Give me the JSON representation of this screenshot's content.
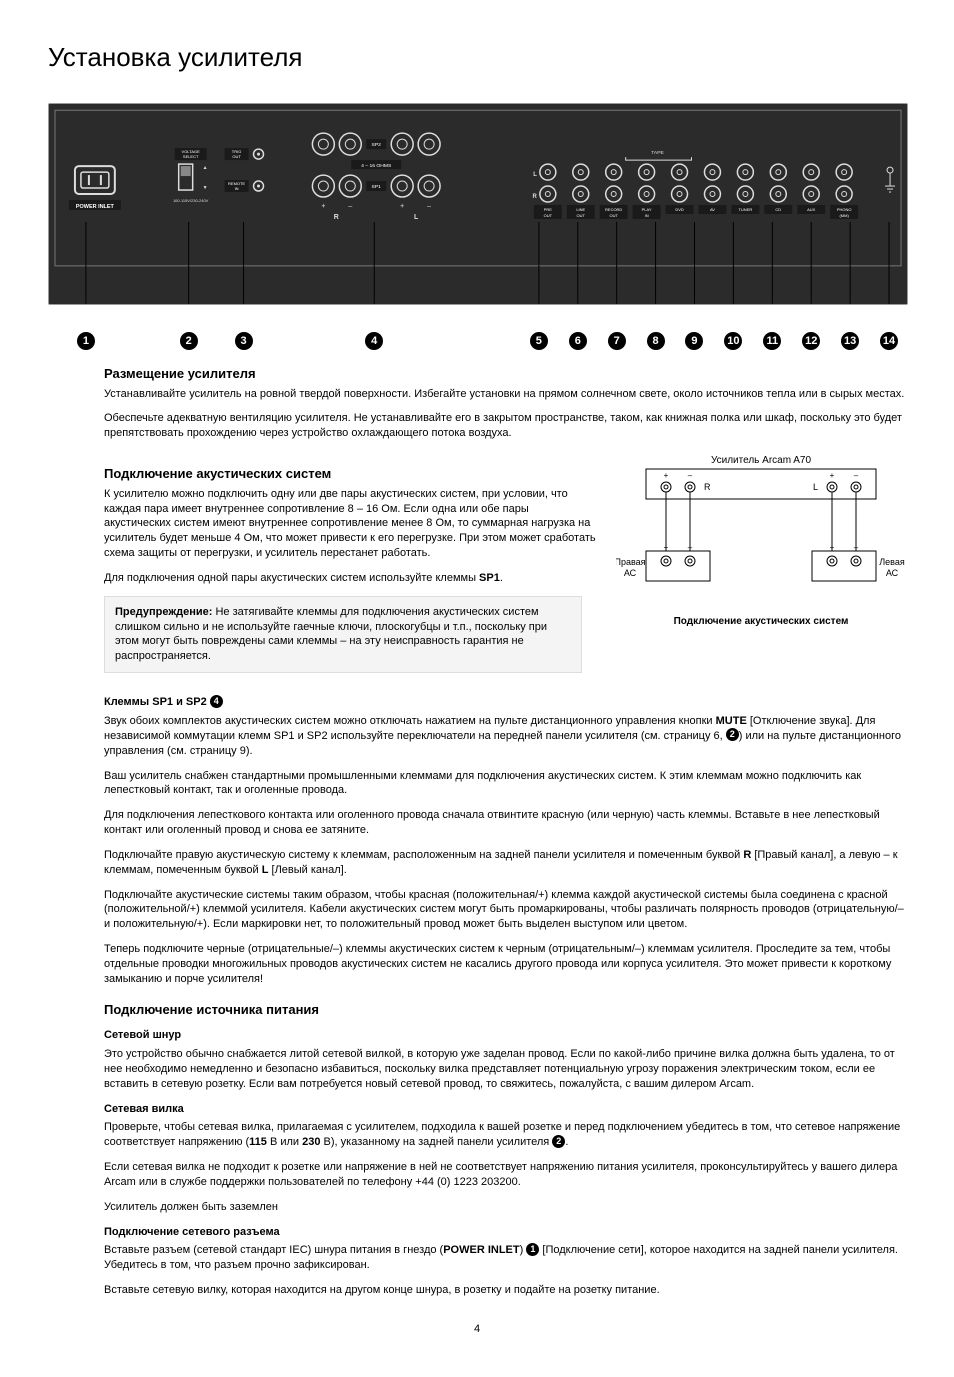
{
  "page": {
    "title": "Установка усилителя",
    "number": "4"
  },
  "diagram": {
    "bg": "#2b2b2b",
    "stroke": "#dddddd",
    "labels": {
      "power_inlet": "POWER INLET",
      "voltage_select": "VOLTAGE\nSELECT",
      "voltage_range": "100-115V/230-240V",
      "voltage_up_down": "230",
      "trig_out": "TRIG\nOUT",
      "remote_in": "REMOTE\nIN",
      "sp1": "SP1",
      "sp2": "SP2",
      "ohms": "4 – 16 OHMS",
      "plus": "+",
      "minus": "–",
      "R": "R",
      "L": "L",
      "tape": "TAPE",
      "pre_out": "PRE\nOUT",
      "line_out": "LINE\nOUT",
      "record_out": "RECORD\nOUT",
      "play_in": "PLAY\nIN",
      "dvd": "DVD",
      "av": "AV",
      "tuner": "TUNER",
      "cd": "CD",
      "aux": "AUX",
      "phono_mm": "PHONO\n(MM)",
      "ground": ""
    },
    "callouts_x": [
      37,
      140,
      195,
      326,
      491,
      530,
      569,
      608,
      647,
      686,
      725,
      764,
      803,
      842
    ],
    "callouts_label": [
      "1",
      "2",
      "3",
      "4",
      "5",
      "6",
      "7",
      "8",
      "9",
      "10",
      "11",
      "12",
      "13",
      "14"
    ]
  },
  "speaker_diagram": {
    "title_top": "Усилитель Arcam A70",
    "r_label": "R",
    "l_label": "L",
    "plus": "+",
    "minus": "–",
    "left_amp": "Правая\nАС",
    "right_amp": "Левая\nАС",
    "caption": "Подключение акустических систем"
  },
  "sections": {
    "placement": {
      "heading": "Размещение усилителя",
      "p1": "Устанавливайте усилитель на ровной твердой поверхности. Избегайте установки на прямом солнечном свете, около источников тепла или в сырых местах.",
      "p2": "Обеспечьте адекватную вентиляцию усилителя. Не устанавливайте его в закрытом пространстве, таком, как книжная полка или шкаф, поскольку это будет препятствовать прохождению через устройство охлаждающего потока воздуха."
    },
    "speakers": {
      "heading": "Подключение акустических систем",
      "p1": "К усилителю можно подключить одну или две пары акустических систем, при условии, что каждая пара  имеет внутреннее сопротивление 8 – 16 Ом. Если одна или обе пары акустических систем имеют внутреннее сопротивление менее 8 Ом, то суммарная нагрузка на усилитель будет меньше 4 Ом, что может привести к его перегрузке. При этом может сработать схема защиты от перегрузки, и усилитель перестанет работать.",
      "p2_pre": "Для подключения одной пары акустических систем используйте клеммы ",
      "p2_bold": "SP1",
      "p2_post": ".",
      "warn_bold": "Предупреждение: ",
      "warn_text": "Не затягивайте клеммы для подключения акустических систем слишком сильно и не используйте гаечные ключи, плоскогубцы и т.п., поскольку при этом могут быть повреждены сами клеммы – на эту неисправность гарантия не распространяется.",
      "sub_bold": "Клеммы SP1 и SP2 ",
      "p3a": "Звук обоих комплектов акустических систем можно отключать нажатием на пульте дистанционного управления кнопки ",
      "p3a_bold": "MUTE",
      "p3b": " [Отключение звука]. Для независимой коммутации клемм SP1 и SP2 используйте переключатели на передней панели усилителя (см. страницу 6, ",
      "p3c": ") или на пульте дистанционного управления (см. страницу 9).",
      "p4": "Ваш усилитель снабжен стандартными промышленными клеммами для подключения акустических систем. К этим клеммам можно подключить как лепестковый контакт, так и оголенные провода.",
      "p5": "Для подключения лепесткового контакта или оголенного провода сначала отвинтите красную (или черную) часть клеммы. Вставьте в нее лепестковый контакт или оголенный провод и снова ее затяните.",
      "p6a": "Подключайте правую акустическую систему к клеммам, расположенным на задней панели усилителя и помеченным буквой ",
      "p6a_bold": "R",
      "p6b": " [Правый канал], а левую – к клеммам, помеченным буквой ",
      "p6b_bold": "L",
      "p6c": " [Левый канал].",
      "p7": "Подключайте акустические системы таким образом, чтобы красная (положительная/+) клемма каждой акустической системы была соединена с красной (положительной/+) клеммой усилителя. Кабели акустических систем могут быть промаркированы, чтобы различать полярность проводов (отрицательную/– и положительную/+). Если маркировки нет, то положительный провод может быть выделен выступом или цветом.",
      "p8": "Теперь подключите черные (отрицательные/–) клеммы акустических систем к черным (отрицательным/–) клеммам усилителя. Проследите за тем, чтобы отдельные проводки многожильных проводов акустических систем не касались другого провода или корпуса усилителя. Это может привести к короткому замыканию и порче усилителя!"
    },
    "power": {
      "heading": "Подключение источника питания",
      "cord_h": "Сетевой шнур",
      "cord_p": "Это устройство обычно снабжается литой сетевой вилкой, в которую уже заделан провод. Если по какой-либо причине вилка должна быть удалена, то от нее необходимо немедленно и безопасно избавиться, поскольку вилка представляет потенциальную угрозу поражения электрическим током, если ее вставить в сетевую розетку. Если вам потребуется новый сетевой провод, то свяжитесь, пожалуйста, с вашим дилером Arcam.",
      "plug_h": "Сетевая вилка",
      "plug_p1a": "Проверьте, чтобы сетевая вилка, прилагаемая с усилителем, подходила к вашей розетке и перед подключением убедитесь в том, что сетевое напряжение соответствует напряжению (",
      "plug_p1_b1": "115",
      "plug_p1_mid": " В или ",
      "plug_p1_b2": "230",
      "plug_p1b": " В), указанному на задней панели усилителя ",
      "plug_p1c": ".",
      "plug_p2": "Если сетевая вилка не подходит к розетке или напряжение в ней не соответствует напряжению питания усилителя, проконсультируйтесь у вашего дилера Arcam или в службе поддержки пользователей по телефону +44 (0) 1223 203200.",
      "plug_p3": "Усилитель должен быть заземлен",
      "inlet_h": "Подключение сетевого разъема",
      "inlet_p1a": "Вставьте разъем (сетевой стандарт IEC) шнура питания в гнездо (",
      "inlet_p1_bold": "POWER INLET",
      "inlet_p1b": ") ",
      "inlet_p1c": " [Подключение сети], которое находится на задней панели усилителя. Убедитесь в том, что разъем прочно зафиксирован.",
      "inlet_p2": "Вставьте сетевую вилку, которая находится на другом конце шнура, в розетку и подайте на розетку питание."
    }
  }
}
